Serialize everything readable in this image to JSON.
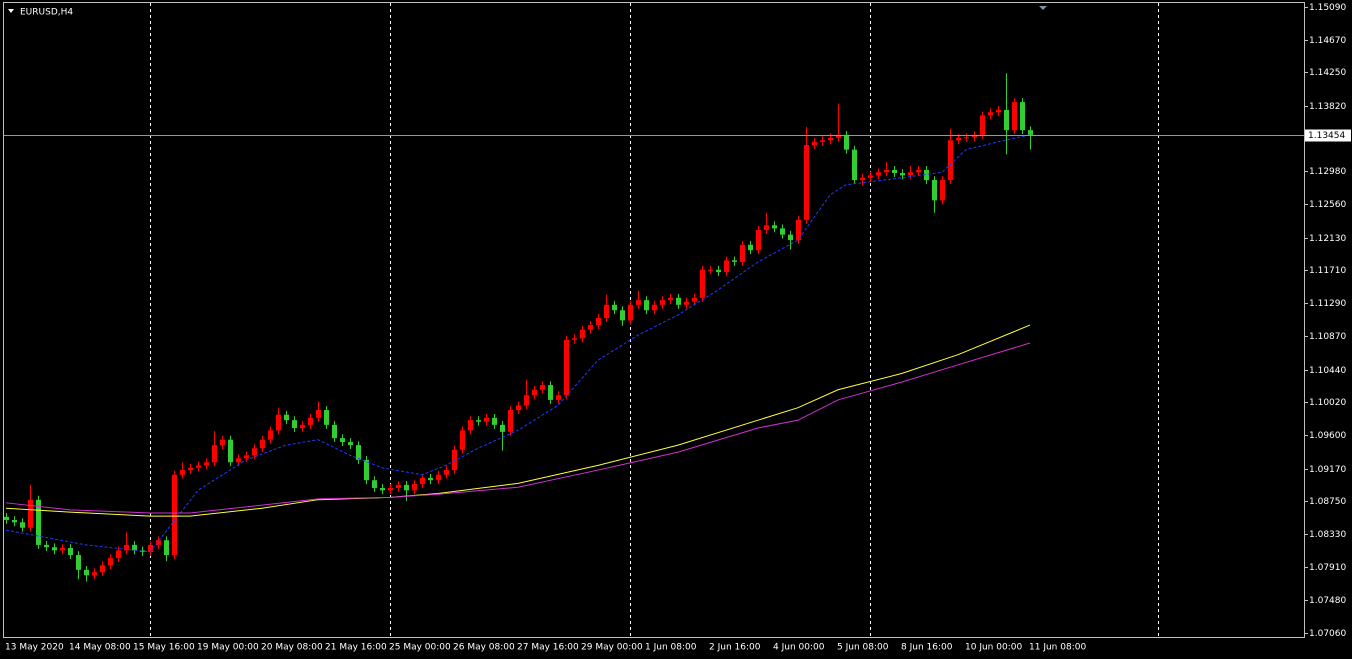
{
  "chart_data": {
    "type": "candlestick",
    "title": "EURUSD,H4",
    "categories": [
      "13 May 2020",
      null,
      null,
      null,
      null,
      null,
      null,
      null,
      "14 May 08:00",
      null,
      null,
      null,
      null,
      null,
      null,
      null,
      "15 May 16:00",
      null,
      null,
      null,
      null,
      null,
      null,
      null,
      "19 May 00:00",
      null,
      null,
      null,
      null,
      null,
      null,
      null,
      "20 May 08:00",
      null,
      null,
      null,
      null,
      null,
      null,
      null,
      "21 May 16:00",
      null,
      null,
      null,
      null,
      null,
      null,
      null,
      "25 May 00:00",
      null,
      null,
      null,
      null,
      null,
      null,
      null,
      "26 May 08:00",
      null,
      null,
      null,
      null,
      null,
      null,
      null,
      "27 May 16:00",
      null,
      null,
      null,
      null,
      null,
      null,
      null,
      "29 May 00:00",
      null,
      null,
      null,
      null,
      null,
      null,
      null,
      "1 Jun 08:00",
      null,
      null,
      null,
      null,
      null,
      null,
      null,
      "2 Jun 16:00",
      null,
      null,
      null,
      null,
      null,
      null,
      null,
      "4 Jun 00:00",
      null,
      null,
      null,
      null,
      null,
      null,
      null,
      "5 Jun 08:00",
      null,
      null,
      null,
      null,
      null,
      null,
      null,
      "8 Jun 16:00",
      null,
      null,
      null,
      null,
      null,
      null,
      null,
      "10 Jun 00:00",
      null,
      null,
      null,
      null,
      null,
      null,
      null,
      "11 Jun 08:00"
    ],
    "open": [
      1.0855,
      1.0851,
      1.0848,
      1.0841,
      1.0877,
      1.0819,
      1.0816,
      1.0812,
      1.0815,
      1.0806,
      1.0787,
      1.078,
      1.0784,
      1.0793,
      1.0802,
      1.0812,
      1.0819,
      1.0812,
      1.081,
      1.0819,
      1.0825,
      1.0806,
      1.0909,
      1.0915,
      1.0918,
      1.0921,
      1.0925,
      1.0947,
      1.0954,
      1.0925,
      1.093,
      1.0934,
      1.0943,
      1.0954,
      1.0966,
      1.0986,
      1.0979,
      1.0969,
      1.0973,
      1.0982,
      1.0992,
      1.0973,
      1.0956,
      1.0951,
      1.0947,
      1.0928,
      1.0902,
      1.0892,
      1.0889,
      1.0892,
      1.0896,
      1.0889,
      1.0897,
      1.0905,
      1.0902,
      1.0909,
      1.0915,
      1.0941,
      1.0966,
      1.0979,
      1.0977,
      1.0982,
      1.0973,
      1.0964,
      1.0992,
      1.0998,
      1.1011,
      1.1018,
      1.1024,
      1.1005,
      1.1011,
      1.1082,
      1.1084,
      1.1095,
      1.1101,
      1.111,
      1.1127,
      1.112,
      1.1107,
      1.1127,
      1.1133,
      1.112,
      1.1127,
      1.1133,
      1.1136,
      1.1127,
      1.1131,
      1.1136,
      1.1172,
      1.1172,
      1.1169,
      1.1184,
      1.1182,
      1.1204,
      1.1197,
      1.1223,
      1.1229,
      1.1225,
      1.1217,
      1.121,
      1.1236,
      1.1332,
      1.1336,
      1.1338,
      1.1341,
      1.1345,
      1.1326,
      1.1287,
      1.129,
      1.1293,
      1.1297,
      1.13,
      1.1296,
      1.1293,
      1.1297,
      1.13,
      1.1287,
      1.1261,
      1.1287,
      1.1338,
      1.1341,
      1.1342,
      1.1345,
      1.137,
      1.1374,
      1.1377,
      1.1351,
      1.1387,
      1.1351
    ],
    "high": [
      1.086,
      1.0856,
      1.0853,
      1.0896,
      1.0882,
      1.0824,
      1.0821,
      1.082,
      1.082,
      1.0811,
      1.0792,
      1.0789,
      1.0798,
      1.0807,
      1.0817,
      1.0835,
      1.0824,
      1.0817,
      1.0824,
      1.083,
      1.083,
      1.0914,
      1.0925,
      1.0923,
      1.0926,
      1.093,
      1.0965,
      1.0959,
      1.0959,
      1.0935,
      1.0939,
      1.0948,
      1.0959,
      1.0971,
      1.0995,
      1.0991,
      1.0984,
      1.0978,
      1.0987,
      1.1003,
      1.0997,
      1.0978,
      1.0961,
      1.0956,
      1.0952,
      1.0933,
      1.0907,
      1.0897,
      1.0897,
      1.0901,
      1.0901,
      1.0902,
      1.091,
      1.091,
      1.0914,
      1.092,
      1.0946,
      1.0971,
      1.0984,
      1.0984,
      1.0987,
      1.0987,
      1.0978,
      1.0997,
      1.1003,
      1.1031,
      1.1023,
      1.1029,
      1.1029,
      1.1016,
      1.1087,
      1.1089,
      1.11,
      1.1106,
      1.1115,
      1.114,
      1.1132,
      1.1125,
      1.1132,
      1.1145,
      1.1138,
      1.1132,
      1.1138,
      1.1141,
      1.1141,
      1.1136,
      1.1141,
      1.1177,
      1.1177,
      1.1177,
      1.1189,
      1.1189,
      1.1209,
      1.1209,
      1.1228,
      1.1245,
      1.1234,
      1.123,
      1.1222,
      1.1241,
      1.1355,
      1.1341,
      1.1343,
      1.1347,
      1.1385,
      1.135,
      1.1331,
      1.1295,
      1.1298,
      1.1302,
      1.131,
      1.1305,
      1.1301,
      1.1305,
      1.1305,
      1.1305,
      1.1292,
      1.1292,
      1.1353,
      1.1346,
      1.1347,
      1.135,
      1.1375,
      1.1379,
      1.1382,
      1.1424,
      1.1392,
      1.1392,
      1.1356
    ],
    "low": [
      1.0846,
      1.0843,
      1.0836,
      1.0836,
      1.0814,
      1.0811,
      1.0807,
      1.0807,
      1.0801,
      1.0775,
      1.0772,
      1.0775,
      1.0779,
      1.0788,
      1.0797,
      1.0807,
      1.0807,
      1.0805,
      1.0805,
      1.0814,
      1.0798,
      1.0801,
      1.0904,
      1.091,
      1.0913,
      1.0916,
      1.092,
      1.0942,
      1.092,
      1.092,
      1.0925,
      1.0929,
      1.0938,
      1.0949,
      1.0961,
      1.0974,
      1.0964,
      1.0964,
      1.0968,
      1.0977,
      1.0968,
      1.0951,
      1.0946,
      1.0942,
      1.0923,
      1.0897,
      1.0887,
      1.0884,
      1.0884,
      1.0887,
      1.0875,
      1.0884,
      1.0892,
      1.0897,
      1.0897,
      1.0904,
      1.091,
      1.0936,
      1.0961,
      1.0972,
      1.0972,
      1.0968,
      1.094,
      1.0959,
      1.0987,
      1.0993,
      1.1006,
      1.1013,
      1.1,
      1.1,
      1.1006,
      1.1077,
      1.1079,
      1.109,
      1.1096,
      1.1105,
      1.1115,
      1.11,
      1.1102,
      1.1122,
      1.1115,
      1.1115,
      1.1122,
      1.1128,
      1.1122,
      1.1122,
      1.1126,
      1.1131,
      1.1167,
      1.1164,
      1.1164,
      1.1177,
      1.1177,
      1.1192,
      1.1192,
      1.1218,
      1.122,
      1.1212,
      1.1198,
      1.1205,
      1.1231,
      1.1327,
      1.1331,
      1.1333,
      1.1336,
      1.1321,
      1.1282,
      1.128,
      1.1285,
      1.1288,
      1.1292,
      1.1291,
      1.1288,
      1.1288,
      1.1292,
      1.1282,
      1.1245,
      1.1256,
      1.1282,
      1.1333,
      1.1336,
      1.1337,
      1.134,
      1.1365,
      1.1369,
      1.132,
      1.1346,
      1.1346,
      1.1326
    ],
    "close": [
      1.0851,
      1.0848,
      1.0841,
      1.0877,
      1.0819,
      1.0816,
      1.0812,
      1.0815,
      1.0806,
      1.0787,
      1.078,
      1.0784,
      1.0793,
      1.0802,
      1.0812,
      1.0819,
      1.0812,
      1.081,
      1.0819,
      1.0825,
      1.0806,
      1.0909,
      1.0915,
      1.0918,
      1.0921,
      1.0925,
      1.0947,
      1.0954,
      1.0925,
      1.093,
      1.0934,
      1.0943,
      1.0954,
      1.0966,
      1.0986,
      1.0979,
      1.0969,
      1.0973,
      1.0982,
      1.0992,
      1.0973,
      1.0956,
      1.0951,
      1.0947,
      1.0928,
      1.0902,
      1.0892,
      1.0889,
      1.0892,
      1.0896,
      1.0889,
      1.0897,
      1.0905,
      1.0902,
      1.0909,
      1.0915,
      1.0941,
      1.0966,
      1.0979,
      1.0977,
      1.0982,
      1.0973,
      1.0964,
      1.0992,
      1.0998,
      1.1011,
      1.1018,
      1.1024,
      1.1005,
      1.1011,
      1.1082,
      1.1084,
      1.1095,
      1.1101,
      1.111,
      1.1127,
      1.112,
      1.1107,
      1.1127,
      1.1133,
      1.112,
      1.1127,
      1.1133,
      1.1136,
      1.1127,
      1.1131,
      1.1136,
      1.1172,
      1.1172,
      1.1169,
      1.1184,
      1.1182,
      1.1204,
      1.1197,
      1.1223,
      1.1229,
      1.1225,
      1.1217,
      1.121,
      1.1236,
      1.1332,
      1.1336,
      1.1338,
      1.1341,
      1.1345,
      1.1326,
      1.1287,
      1.129,
      1.1293,
      1.1297,
      1.13,
      1.1296,
      1.1293,
      1.1297,
      1.13,
      1.1287,
      1.1261,
      1.1287,
      1.1338,
      1.1341,
      1.1342,
      1.1345,
      1.137,
      1.1374,
      1.1377,
      1.1351,
      1.1387,
      1.1351,
      1.1345
    ],
    "up_color": "#ff0000",
    "down_color": "#32cd32",
    "lines": [
      {
        "color": "#1e3cff",
        "style": "dashed",
        "x": [
          0,
          10,
          18,
          24,
          30,
          35,
          39,
          43,
          47,
          52,
          55,
          59,
          64,
          69,
          74,
          79,
          84,
          89,
          94,
          99,
          103,
          105,
          112,
          117,
          120,
          124,
          128
        ],
        "values": [
          1.0838,
          1.0819,
          1.081,
          1.0889,
          1.0928,
          1.0947,
          1.0954,
          1.0934,
          1.0918,
          1.0909,
          1.0921,
          1.0943,
          1.0966,
          1.0998,
          1.1056,
          1.1088,
          1.1114,
          1.1146,
          1.1182,
          1.121,
          1.1268,
          1.1281,
          1.129,
          1.1297,
          1.1326,
          1.1336,
          1.1345
        ]
      },
      {
        "color": "#ffff40",
        "style": "solid",
        "x": [
          0,
          8,
          18,
          23,
          32,
          39,
          48,
          54,
          64,
          74,
          84,
          94,
          99,
          104,
          112,
          119,
          128
        ],
        "values": [
          1.0866,
          1.0861,
          1.0856,
          1.0856,
          1.0866,
          1.0877,
          1.088,
          1.0885,
          1.0898,
          1.0921,
          1.0947,
          1.0979,
          1.0995,
          1.1018,
          1.1039,
          1.1063,
          1.1101
        ]
      },
      {
        "color": "#d030d0",
        "style": "solid",
        "x": [
          0,
          8,
          18,
          23,
          32,
          39,
          48,
          54,
          64,
          74,
          84,
          94,
          99,
          104,
          112,
          119,
          128
        ],
        "values": [
          1.0873,
          1.0864,
          1.086,
          1.086,
          1.087,
          1.0878,
          1.088,
          1.0884,
          1.0893,
          1.0915,
          1.0938,
          1.0969,
          1.0979,
          1.1005,
          1.1028,
          1.105,
          1.1078
        ]
      }
    ],
    "last_price": 1.13454,
    "ylim": [
      1.0706,
      1.1509
    ],
    "yticks": [
      {
        "value": 1.1509,
        "label": "1.15090"
      },
      {
        "value": 1.1467,
        "label": "1.14670"
      },
      {
        "value": 1.1425,
        "label": "1.14250"
      },
      {
        "value": 1.1382,
        "label": "1.13820"
      },
      {
        "value": 1.1298,
        "label": "1.12980"
      },
      {
        "value": 1.1256,
        "label": "1.12560"
      },
      {
        "value": 1.1213,
        "label": "1.12130"
      },
      {
        "value": 1.1171,
        "label": "1.11710"
      },
      {
        "value": 1.1129,
        "label": "1.11290"
      },
      {
        "value": 1.1087,
        "label": "1.10870"
      },
      {
        "value": 1.1044,
        "label": "1.10440"
      },
      {
        "value": 1.1002,
        "label": "1.10020"
      },
      {
        "value": 1.096,
        "label": "1.09600"
      },
      {
        "value": 1.0917,
        "label": "1.09170"
      },
      {
        "value": 1.0875,
        "label": "1.08750"
      },
      {
        "value": 1.0833,
        "label": "1.08330"
      },
      {
        "value": 1.0791,
        "label": "1.07910"
      },
      {
        "value": 1.0748,
        "label": "1.07480"
      },
      {
        "value": 1.0706,
        "label": "1.07060"
      }
    ]
  }
}
